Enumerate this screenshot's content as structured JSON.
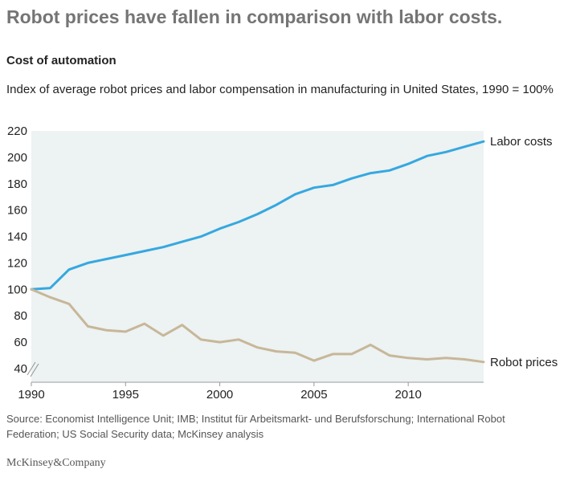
{
  "headline": "Robot prices have fallen in comparison with labor costs.",
  "chart_data": {
    "type": "line",
    "title": "Cost of automation",
    "subtitle": "Index of average robot prices and labor compensation in manufacturing in United States, 1990 = 100%",
    "xlabel": "",
    "ylabel": "",
    "x": [
      1990,
      1991,
      1992,
      1993,
      1994,
      1995,
      1996,
      1997,
      1998,
      1999,
      2000,
      2001,
      2002,
      2003,
      2004,
      2005,
      2006,
      2007,
      2008,
      2009,
      2010,
      2011,
      2012,
      2013,
      2014
    ],
    "series": [
      {
        "name": "Labor costs",
        "color": "#35a8e0",
        "values": [
          100,
          101,
          115,
          120,
          123,
          126,
          129,
          132,
          136,
          140,
          146,
          151,
          157,
          164,
          172,
          177,
          179,
          184,
          188,
          190,
          195,
          201,
          204,
          208,
          212
        ]
      },
      {
        "name": "Robot prices",
        "color": "#c7b799",
        "values": [
          100,
          94,
          89,
          72,
          69,
          68,
          74,
          65,
          73,
          62,
          60,
          62,
          56,
          53,
          52,
          46,
          51,
          51,
          58,
          50,
          48,
          47,
          48,
          47,
          45
        ]
      }
    ],
    "xticks": [
      1990,
      1995,
      2000,
      2005,
      2010
    ],
    "yticks": [
      40,
      60,
      80,
      100,
      120,
      140,
      160,
      180,
      200,
      220
    ],
    "xlim": [
      1990,
      2014
    ],
    "ylim": [
      40,
      220
    ],
    "axis_break": true,
    "plot_background": "#edf2f2",
    "grid": false,
    "legend": "direct labels at line ends (right)"
  },
  "source": "Source: Economist Intelligence Unit; IMB; Institut für Arbeitsmarkt- und Berufsforschung; International Robot Federation; US Social Security data; McKinsey analysis",
  "brand": "McKinsey&Company"
}
